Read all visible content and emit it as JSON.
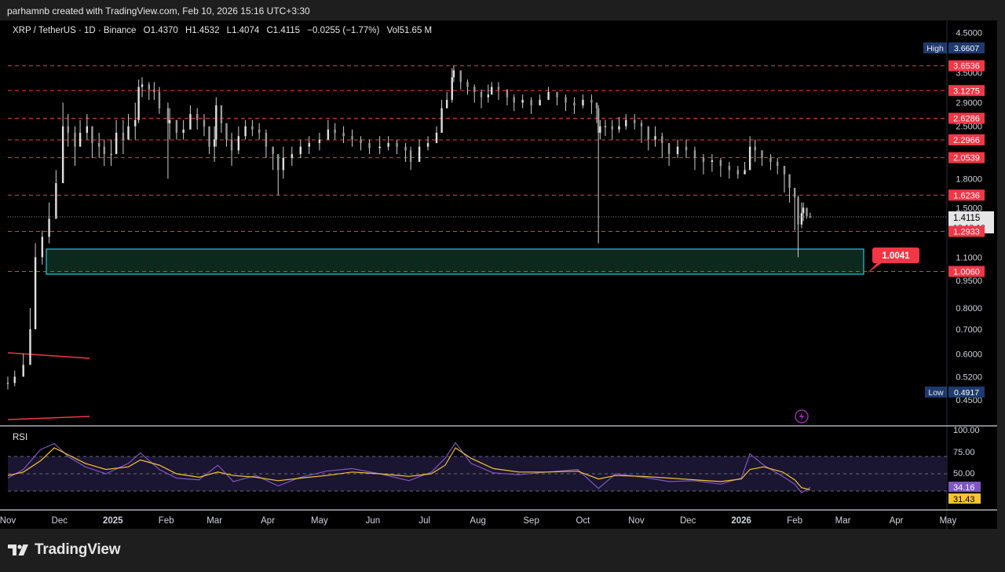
{
  "header": {
    "credit": "parhamnb created with TradingView.com, Feb 10, 2026 15:16 UTC+3:30"
  },
  "legend": {
    "symbol": "XRP / TetherUS · 1D · Binance",
    "open": "O1.4370",
    "high": "H1.4532",
    "low": "L1.4074",
    "close": "C1.4115",
    "change": "−0.0255 (−1.77%)",
    "volume": "Vol51.65 M"
  },
  "price_axis": {
    "ticks": [
      "4.5000",
      "3.5000",
      "2.9000",
      "2.5000",
      "1.8000",
      "1.5000",
      "1.1000",
      "0.9500",
      "0.8000",
      "0.7000",
      "0.6000",
      "0.5200",
      "0.4500"
    ],
    "high_label": "High",
    "high_value": "3.6607",
    "low_label": "Low",
    "low_value": "0.4917",
    "current_price": "1.4115",
    "countdown": "12:13:12"
  },
  "levels": [
    {
      "value": "3.6536"
    },
    {
      "value": "3.1275"
    },
    {
      "value": "2.6286"
    },
    {
      "value": "2.2966"
    },
    {
      "value": "2.0539"
    },
    {
      "value": "1.6236"
    },
    {
      "value": "1.2933"
    },
    {
      "value": "1.0060"
    }
  ],
  "callout": {
    "value": "1.0041"
  },
  "rsi": {
    "label": "RSI",
    "ticks": [
      "100.00",
      "75.00",
      "50.00"
    ],
    "rsi_value": "34.16",
    "ma_value": "31.43"
  },
  "time_axis": [
    "Nov",
    "Dec",
    "2025",
    "Feb",
    "Mar",
    "Apr",
    "May",
    "Jun",
    "Jul",
    "Aug",
    "Sep",
    "Oct",
    "Nov",
    "Dec",
    "2026",
    "Feb",
    "Mar",
    "Apr",
    "May"
  ],
  "footer": {
    "brand": "TradingView"
  },
  "colors": {
    "background": "#000000",
    "levels": "#f23645",
    "zone_border": "#26c6da",
    "zone_fill": "#0b2a1d",
    "rsi_line": "#7e57c2",
    "rsi_ma": "#f7c331",
    "high_low_badge": "#1e3a6e"
  },
  "chart_data": {
    "type": "candlestick",
    "scale": "log",
    "ylim": [
      0.43,
      4.7
    ],
    "x": [
      "2024-11-01",
      "2024-11-05",
      "2024-11-10",
      "2024-11-14",
      "2024-11-17",
      "2024-11-21",
      "2024-11-25",
      "2024-11-29",
      "2024-12-03",
      "2024-12-06",
      "2024-12-10",
      "2024-12-13",
      "2024-12-17",
      "2024-12-20",
      "2024-12-24",
      "2024-12-27",
      "2024-12-31",
      "2025-01-03",
      "2025-01-07",
      "2025-01-10",
      "2025-01-14",
      "2025-01-16",
      "2025-01-18",
      "2025-01-22",
      "2025-01-25",
      "2025-01-28",
      "2025-02-02",
      "2025-02-03",
      "2025-02-07",
      "2025-02-11",
      "2025-02-15",
      "2025-02-19",
      "2025-02-23",
      "2025-02-26",
      "2025-03-01",
      "2025-03-02",
      "2025-03-05",
      "2025-03-08",
      "2025-03-11",
      "2025-03-15",
      "2025-03-19",
      "2025-03-23",
      "2025-03-27",
      "2025-03-31",
      "2025-04-04",
      "2025-04-07",
      "2025-04-10",
      "2025-04-15",
      "2025-04-20",
      "2025-04-25",
      "2025-05-01",
      "2025-05-06",
      "2025-05-10",
      "2025-05-15",
      "2025-05-20",
      "2025-05-25",
      "2025-05-30",
      "2025-06-05",
      "2025-06-10",
      "2025-06-15",
      "2025-06-20",
      "2025-06-23",
      "2025-06-28",
      "2025-07-03",
      "2025-07-08",
      "2025-07-11",
      "2025-07-14",
      "2025-07-17",
      "2025-07-18",
      "2025-07-22",
      "2025-07-26",
      "2025-07-30",
      "2025-08-03",
      "2025-08-07",
      "2025-08-09",
      "2025-08-13",
      "2025-08-18",
      "2025-08-22",
      "2025-08-27",
      "2025-09-01",
      "2025-09-06",
      "2025-09-11",
      "2025-09-16",
      "2025-09-21",
      "2025-09-26",
      "2025-10-01",
      "2025-10-06",
      "2025-10-09",
      "2025-10-10",
      "2025-10-11",
      "2025-10-14",
      "2025-10-18",
      "2025-10-22",
      "2025-10-26",
      "2025-10-31",
      "2025-11-04",
      "2025-11-08",
      "2025-11-12",
      "2025-11-16",
      "2025-11-20",
      "2025-11-25",
      "2025-11-30",
      "2025-12-05",
      "2025-12-10",
      "2025-12-15",
      "2025-12-20",
      "2025-12-25",
      "2025-12-30",
      "2026-01-03",
      "2026-01-06",
      "2026-01-09",
      "2026-01-13",
      "2026-01-18",
      "2026-01-22",
      "2026-01-26",
      "2026-01-29",
      "2026-02-01",
      "2026-02-03",
      "2026-02-05",
      "2026-02-06",
      "2026-02-08",
      "2026-02-10"
    ],
    "close": [
      0.5,
      0.52,
      0.56,
      0.7,
      1.1,
      1.25,
      1.4,
      1.75,
      2.5,
      2.4,
      2.2,
      2.4,
      2.5,
      2.25,
      2.2,
      2.1,
      2.1,
      2.4,
      2.3,
      2.5,
      2.6,
      3.2,
      3.25,
      3.15,
      3.1,
      2.8,
      2.55,
      2.6,
      2.4,
      2.45,
      2.7,
      2.6,
      2.5,
      2.2,
      2.3,
      2.85,
      2.55,
      2.3,
      2.15,
      2.35,
      2.5,
      2.45,
      2.4,
      2.2,
      2.1,
      1.9,
      2.05,
      2.1,
      2.2,
      2.25,
      2.3,
      2.45,
      2.4,
      2.35,
      2.3,
      2.25,
      2.18,
      2.2,
      2.25,
      2.2,
      2.15,
      2.0,
      2.2,
      2.25,
      2.4,
      2.8,
      2.95,
      3.4,
      3.55,
      3.3,
      3.2,
      3.1,
      3.0,
      3.05,
      3.2,
      3.15,
      3.0,
      2.9,
      2.95,
      2.85,
      2.95,
      3.1,
      3.0,
      2.9,
      2.85,
      2.95,
      2.9,
      2.8,
      2.4,
      2.5,
      2.5,
      2.45,
      2.5,
      2.6,
      2.55,
      2.5,
      2.3,
      2.35,
      2.25,
      2.1,
      2.2,
      2.15,
      2.05,
      2.0,
      2.02,
      1.95,
      1.9,
      1.85,
      1.9,
      2.2,
      2.15,
      2.05,
      2.0,
      1.95,
      1.85,
      1.7,
      1.6,
      1.35,
      1.45,
      1.5,
      1.42,
      1.4115
    ],
    "high": [
      0.52,
      0.54,
      0.6,
      0.8,
      1.2,
      1.3,
      1.55,
      1.9,
      2.9,
      2.7,
      2.5,
      2.6,
      2.7,
      2.5,
      2.4,
      2.3,
      2.3,
      2.6,
      2.6,
      2.7,
      2.9,
      3.35,
      3.4,
      3.3,
      3.3,
      3.2,
      2.9,
      2.8,
      2.6,
      2.6,
      2.85,
      2.8,
      2.7,
      2.4,
      2.5,
      3.0,
      2.8,
      2.5,
      2.4,
      2.5,
      2.6,
      2.6,
      2.55,
      2.45,
      2.2,
      2.1,
      2.2,
      2.2,
      2.3,
      2.35,
      2.4,
      2.6,
      2.55,
      2.5,
      2.45,
      2.35,
      2.3,
      2.35,
      2.35,
      2.3,
      2.25,
      2.2,
      2.3,
      2.35,
      2.5,
      2.95,
      3.1,
      3.6,
      3.66,
      3.5,
      3.35,
      3.25,
      3.15,
      3.25,
      3.3,
      3.3,
      3.15,
      3.05,
      3.05,
      3.0,
      3.05,
      3.2,
      3.1,
      3.05,
      3.0,
      3.05,
      3.05,
      2.9,
      2.85,
      2.6,
      2.6,
      2.6,
      2.65,
      2.7,
      2.7,
      2.6,
      2.45,
      2.5,
      2.4,
      2.25,
      2.3,
      2.3,
      2.2,
      2.1,
      2.1,
      2.05,
      2.0,
      1.95,
      2.0,
      2.35,
      2.3,
      2.15,
      2.1,
      2.05,
      1.95,
      1.85,
      1.7,
      1.62,
      1.55,
      1.55,
      1.5,
      1.4532
    ],
    "low": [
      0.48,
      0.49,
      0.52,
      0.6,
      0.9,
      1.05,
      1.2,
      1.4,
      1.8,
      2.2,
      1.95,
      2.2,
      2.3,
      2.05,
      2.05,
      1.95,
      1.95,
      2.1,
      2.1,
      2.3,
      2.3,
      2.55,
      3.0,
      2.95,
      2.95,
      2.7,
      1.8,
      2.3,
      2.3,
      2.3,
      2.5,
      2.45,
      2.35,
      2.1,
      2.0,
      2.2,
      2.4,
      2.2,
      1.95,
      2.1,
      2.3,
      2.35,
      2.3,
      2.05,
      1.9,
      1.62,
      1.8,
      1.95,
      2.05,
      2.1,
      2.15,
      2.3,
      2.3,
      2.25,
      2.2,
      2.15,
      2.1,
      2.1,
      2.15,
      2.1,
      2.0,
      1.9,
      2.1,
      2.15,
      2.25,
      2.4,
      2.8,
      2.9,
      3.3,
      3.15,
      3.05,
      2.9,
      2.8,
      2.9,
      3.05,
      2.95,
      2.85,
      2.75,
      2.8,
      2.7,
      2.85,
      2.95,
      2.85,
      2.75,
      2.7,
      2.8,
      2.7,
      2.55,
      1.2,
      2.3,
      2.35,
      2.3,
      2.4,
      2.45,
      2.45,
      2.25,
      2.15,
      2.2,
      2.05,
      1.95,
      2.05,
      2.05,
      1.9,
      1.85,
      1.88,
      1.82,
      1.8,
      1.8,
      1.85,
      1.95,
      2.0,
      1.95,
      1.9,
      1.85,
      1.65,
      1.55,
      1.3,
      1.1,
      1.32,
      1.38,
      1.4,
      1.4074
    ]
  },
  "rsi_data": {
    "x": [
      "2024-11-01",
      "2024-11-10",
      "2024-11-20",
      "2024-11-28",
      "2024-12-06",
      "2024-12-16",
      "2024-12-28",
      "2025-01-10",
      "2025-01-17",
      "2025-01-28",
      "2025-02-07",
      "2025-02-20",
      "2025-03-03",
      "2025-03-12",
      "2025-03-25",
      "2025-04-07",
      "2025-04-20",
      "2025-05-05",
      "2025-05-20",
      "2025-06-05",
      "2025-06-22",
      "2025-07-05",
      "2025-07-13",
      "2025-07-19",
      "2025-07-28",
      "2025-08-10",
      "2025-08-25",
      "2025-09-10",
      "2025-09-28",
      "2025-10-10",
      "2025-10-20",
      "2025-11-05",
      "2025-11-20",
      "2025-12-05",
      "2025-12-20",
      "2026-01-01",
      "2026-01-06",
      "2026-01-14",
      "2026-01-25",
      "2026-02-01",
      "2026-02-05",
      "2026-02-10"
    ],
    "rsi": [
      45,
      55,
      78,
      85,
      70,
      58,
      50,
      62,
      74,
      55,
      45,
      43,
      60,
      41,
      48,
      36,
      46,
      53,
      56,
      50,
      42,
      52,
      68,
      86,
      62,
      51,
      49,
      52,
      55,
      33,
      50,
      46,
      41,
      42,
      38,
      45,
      73,
      60,
      47,
      38,
      28,
      34.16
    ],
    "ma": [
      48,
      52,
      65,
      80,
      72,
      62,
      55,
      58,
      66,
      60,
      50,
      46,
      52,
      48,
      46,
      42,
      45,
      48,
      52,
      50,
      47,
      50,
      60,
      80,
      68,
      56,
      52,
      52,
      53,
      44,
      48,
      47,
      45,
      43,
      41,
      44,
      55,
      58,
      52,
      43,
      34,
      31.43
    ],
    "ylim": [
      0,
      100
    ],
    "levels": [
      70,
      50,
      30
    ]
  }
}
